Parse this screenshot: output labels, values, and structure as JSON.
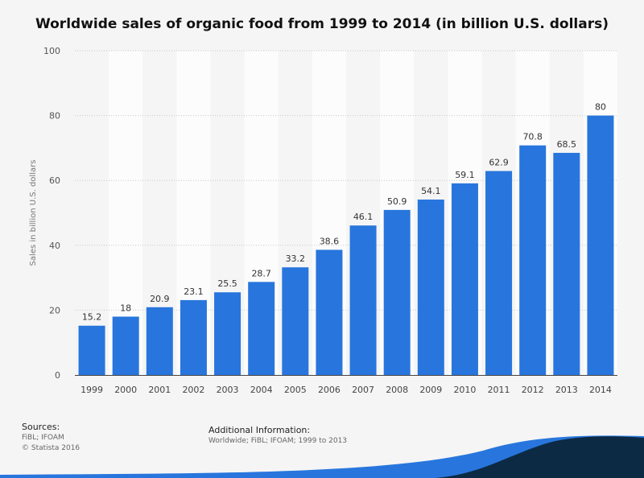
{
  "chart_data": {
    "type": "bar",
    "title": "Worldwide sales of organic food from 1999 to 2014 (in billion U.S. dollars)",
    "ylabel": "Sales in billion U.S. dollars",
    "xlabel": "",
    "ylim": [
      0,
      100
    ],
    "yticks": [
      0,
      20,
      40,
      60,
      80,
      100
    ],
    "grid": true,
    "categories": [
      "1999",
      "2000",
      "2001",
      "2002",
      "2003",
      "2004",
      "2005",
      "2006",
      "2007",
      "2008",
      "2009",
      "2010",
      "2011",
      "2012",
      "2013",
      "2014"
    ],
    "values": [
      15.2,
      18,
      20.9,
      23.1,
      25.5,
      28.7,
      33.2,
      38.6,
      46.1,
      50.9,
      54.1,
      59.1,
      62.9,
      70.8,
      68.5,
      80
    ],
    "bar_color": "#2876dd"
  },
  "footer": {
    "sources_heading": "Sources:",
    "sources_line1": "FiBL; IFOAM",
    "sources_line2": "© Statista 2016",
    "additional_heading": "Additional Information:",
    "additional_text": "Worldwide; FiBL; IFOAM; 1999 to 2013"
  },
  "colors": {
    "brand_dark": "#0d2a44",
    "brand_blue": "#2876dd"
  }
}
